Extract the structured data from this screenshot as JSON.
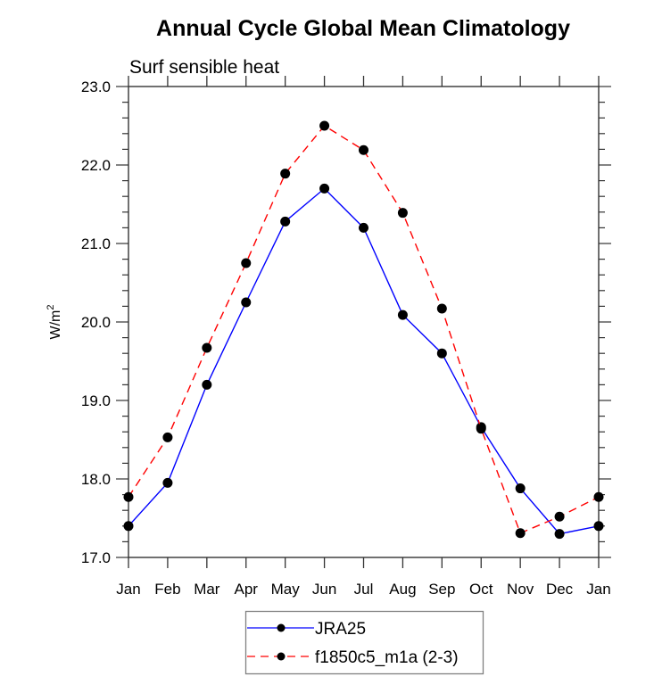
{
  "chart_data": {
    "type": "line",
    "title": "Annual Cycle Global Mean Climatology",
    "subtitle": "Surf sensible heat",
    "xlabel": "",
    "ylabel": "W/m",
    "ylabel_superscript": "2",
    "categories": [
      "Jan",
      "Feb",
      "Mar",
      "Apr",
      "May",
      "Jun",
      "Jul",
      "Aug",
      "Sep",
      "Oct",
      "Nov",
      "Dec",
      "Jan"
    ],
    "ylim": [
      17.0,
      23.0
    ],
    "yticks": [
      "17.0",
      "18.0",
      "19.0",
      "20.0",
      "21.0",
      "22.0",
      "23.0"
    ],
    "yminor_step": 0.2,
    "grid": false,
    "legend_position": "bottom-center",
    "series": [
      {
        "name": "JRA25",
        "color": "#0000ff",
        "style": "solid",
        "marker": "filled-circle",
        "values": [
          17.4,
          17.95,
          19.2,
          20.25,
          21.28,
          21.7,
          21.2,
          20.09,
          19.6,
          18.66,
          17.88,
          17.3,
          17.4
        ]
      },
      {
        "name": "f1850c5_m1a (2-3)",
        "color": "#ff0000",
        "style": "dashed",
        "marker": "filled-circle",
        "values": [
          17.77,
          18.53,
          19.67,
          20.75,
          21.89,
          22.5,
          22.19,
          21.39,
          20.17,
          18.64,
          17.31,
          17.52,
          17.77
        ]
      }
    ]
  }
}
